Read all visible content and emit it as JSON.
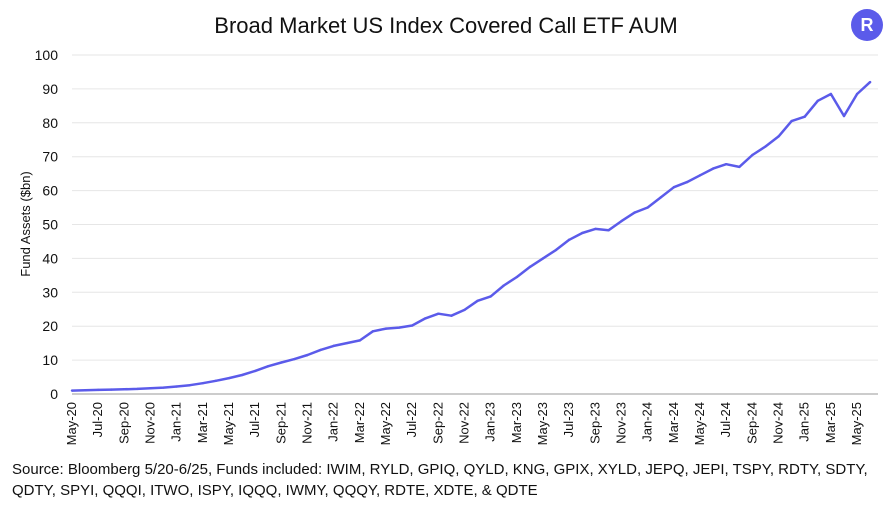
{
  "logo_letter": "R",
  "source_note": "Source: Bloomberg 5/20-6/25, Funds included: IWIM, RYLD, GPIQ, QYLD, KNG, GPIX, XYLD, JEPQ, JEPI, TSPY, RDTY, SDTY, QDTY, SPYI, QQQI, ITWO, ISPY, IQQQ, IWMY, QQQY, RDTE, XDTE, & QDTE",
  "colors": {
    "line": "#5b5bea",
    "grid": "#e6e6e6",
    "logo": "#5b5bea"
  },
  "chart_data": {
    "type": "line",
    "title": "Broad Market US Index Covered Call ETF AUM",
    "xlabel": "",
    "ylabel": "Fund Assets ($bn)",
    "ylim": [
      0,
      100
    ],
    "yticks": [
      0,
      10,
      20,
      30,
      40,
      50,
      60,
      70,
      80,
      90,
      100
    ],
    "grid": "horizontal",
    "x_ticks": [
      "May-20",
      "Jul-20",
      "Sep-20",
      "Nov-20",
      "Jan-21",
      "Mar-21",
      "May-21",
      "Jul-21",
      "Sep-21",
      "Nov-21",
      "Jan-22",
      "Mar-22",
      "May-22",
      "Jul-22",
      "Sep-22",
      "Nov-22",
      "Jan-23",
      "Mar-23",
      "May-23",
      "Jul-23",
      "Sep-23",
      "Nov-23",
      "Jan-24",
      "Mar-24",
      "May-24",
      "Jul-24",
      "Sep-24",
      "Nov-24",
      "Jan-25",
      "Mar-25",
      "May-25"
    ],
    "series": [
      {
        "x": [
          "2020-05",
          "2020-06",
          "2020-07",
          "2020-08",
          "2020-09",
          "2020-10",
          "2020-11",
          "2020-12",
          "2021-01",
          "2021-02",
          "2021-03",
          "2021-04",
          "2021-05",
          "2021-06",
          "2021-07",
          "2021-08",
          "2021-09",
          "2021-10",
          "2021-11",
          "2021-12",
          "2022-01",
          "2022-02",
          "2022-03",
          "2022-04",
          "2022-05",
          "2022-06",
          "2022-07",
          "2022-08",
          "2022-09",
          "2022-10",
          "2022-11",
          "2022-12",
          "2023-01",
          "2023-02",
          "2023-03",
          "2023-04",
          "2023-05",
          "2023-06",
          "2023-07",
          "2023-08",
          "2023-09",
          "2023-10",
          "2023-11",
          "2023-12",
          "2024-01",
          "2024-02",
          "2024-03",
          "2024-04",
          "2024-05",
          "2024-06",
          "2024-07",
          "2024-08",
          "2024-09",
          "2024-10",
          "2024-11",
          "2024-12",
          "2025-01",
          "2025-02",
          "2025-03",
          "2025-04",
          "2025-05",
          "2025-06"
        ],
        "values": [
          1.0,
          1.1,
          1.2,
          1.3,
          1.4,
          1.5,
          1.7,
          1.9,
          2.2,
          2.6,
          3.2,
          3.9,
          4.7,
          5.6,
          6.8,
          8.2,
          9.3,
          10.3,
          11.5,
          13.0,
          14.2,
          15.0,
          15.8,
          18.5,
          19.3,
          19.6,
          20.2,
          22.3,
          23.7,
          23.1,
          24.8,
          27.5,
          28.8,
          32.0,
          34.5,
          37.5,
          40.0,
          42.5,
          45.5,
          47.5,
          48.7,
          48.3,
          51.0,
          53.5,
          55.0,
          58.0,
          61.0,
          62.5,
          64.5,
          66.5,
          67.8,
          67.0,
          70.5,
          73.0,
          76.0,
          80.5,
          81.8,
          86.5,
          88.5,
          82.0,
          88.5,
          92.0
        ]
      }
    ]
  }
}
